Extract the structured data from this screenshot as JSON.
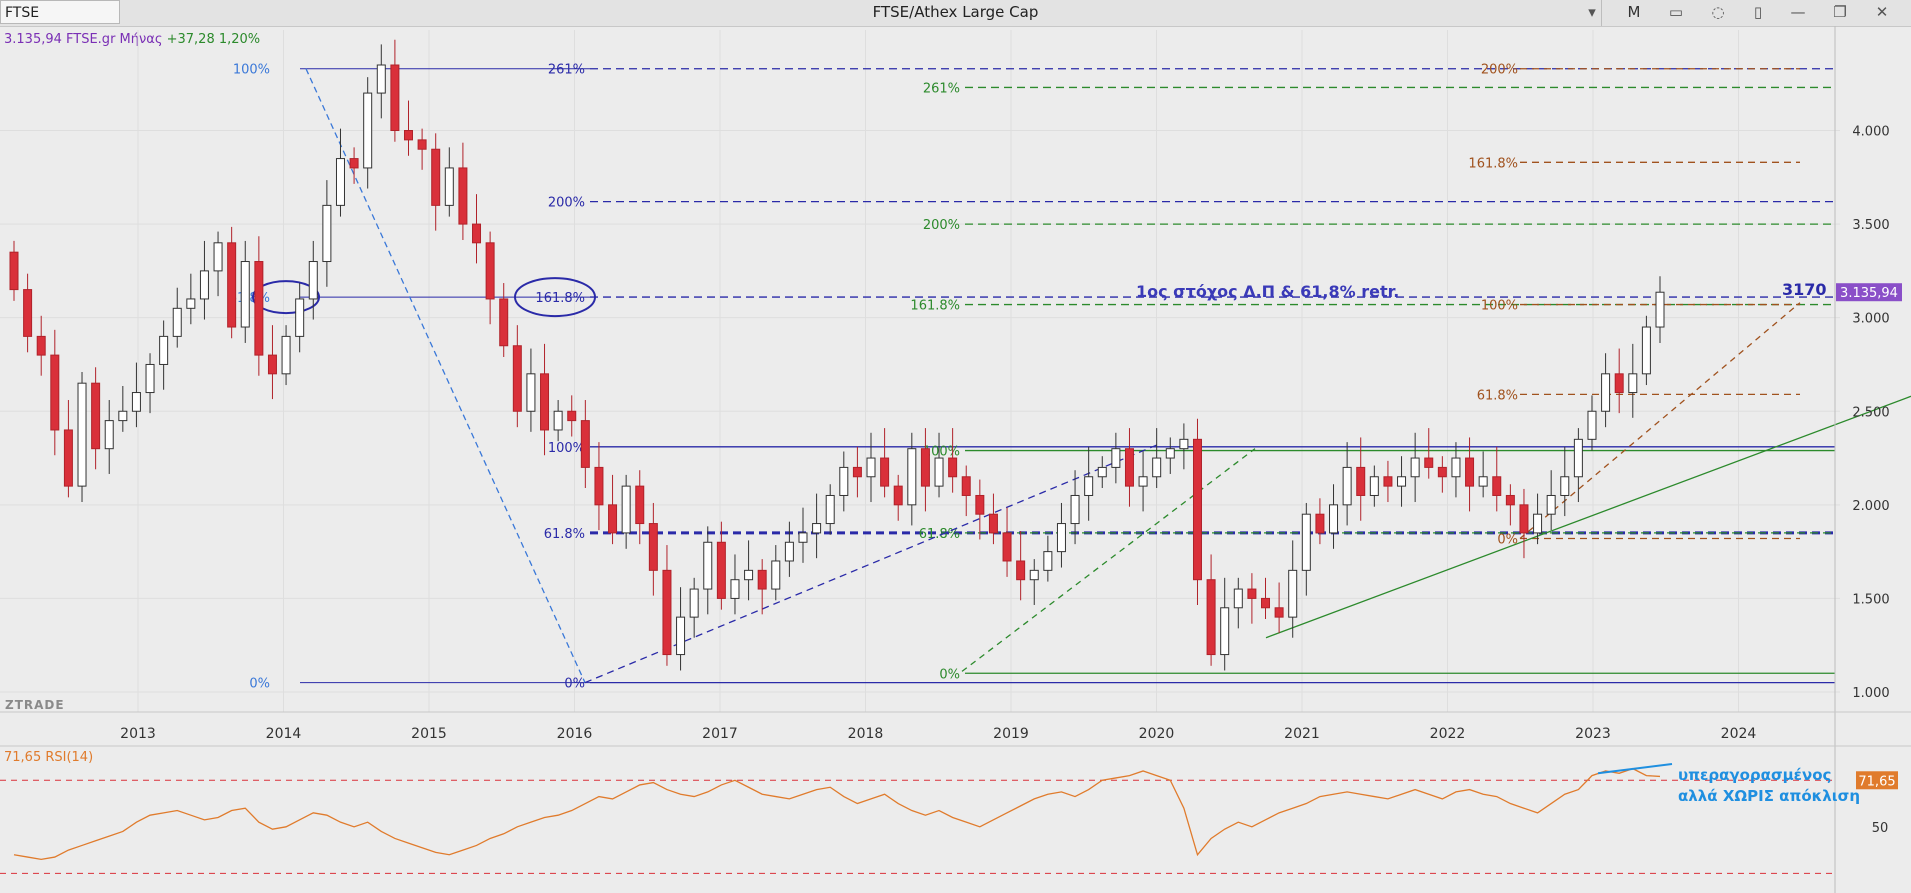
{
  "window": {
    "symbol": "FTSE",
    "title": "FTSE/Athex Large Cap",
    "mode_label": "M"
  },
  "quote": {
    "price_text": "3.135,94 FTSE.gr Μήνας",
    "change_text": "+37,28 1,20%"
  },
  "brand": "ZTRADE",
  "annotations": {
    "target_note": "1ος στόχος Δ.Π & 61,8% retr.",
    "target_value": "3170",
    "rsi_note_line1": "υπεραγορασμένος",
    "rsi_note_line2": "αλλά ΧΩΡΙΣ απόκλιση"
  },
  "rsi_panel": {
    "label": "71,65 RSI(14)",
    "current_badge": "71,65",
    "tick_50": "50"
  },
  "colors": {
    "up_candle": "#ffffff",
    "down_candle": "#d9303a",
    "fib_blue": "#2a2aa8",
    "fib_green": "#2c8a2c",
    "fib_brown": "#a0521e",
    "rsi_line": "#e07b2c",
    "price_badge": "#8a4fc8"
  },
  "chart_data": [
    {
      "type": "candlestick",
      "title": "FTSE/Athex Large Cap",
      "timeframe": "Μήνας",
      "x_ticks": [
        "2013",
        "2014",
        "2015",
        "2016",
        "2017",
        "2018",
        "2019",
        "2020",
        "2021",
        "2022",
        "2023",
        "2024"
      ],
      "y_ticks": [
        "1.000",
        "1.500",
        "2.000",
        "2.500",
        "3.000",
        "3.500",
        "4.000"
      ],
      "y_range": [
        1000,
        4350
      ],
      "last_price_label": "3.135,94",
      "series": [
        {
          "name": "FTSE",
          "close": [
            3150,
            2900,
            2800,
            2400,
            2100,
            2650,
            2300,
            2450,
            2500,
            2600,
            2750,
            2900,
            3050,
            3100,
            3250,
            3400,
            2950,
            3300,
            2800,
            2700,
            2900,
            3100,
            3300,
            3600,
            3850,
            3800,
            4200,
            4350,
            4000,
            3950,
            3900,
            3600,
            3800,
            3500,
            3400,
            3100,
            2850,
            2500,
            2700,
            2400,
            2500,
            2450,
            2200,
            2000,
            1850,
            2100,
            1900,
            1650,
            1200,
            1400,
            1550,
            1800,
            1500,
            1600,
            1650,
            1550,
            1700,
            1800,
            1850,
            1900,
            2050,
            2200,
            2150,
            2250,
            2100,
            2000,
            2300,
            2100,
            2250,
            2150,
            2050,
            1950,
            1850,
            1700,
            1600,
            1650,
            1750,
            1900,
            2050,
            2150,
            2200,
            2300,
            2100,
            2150,
            2250,
            2300,
            2350,
            1600,
            1200,
            1450,
            1550,
            1500,
            1450,
            1400,
            1650,
            1950,
            1850,
            2000,
            2200,
            2050,
            2150,
            2100,
            2150,
            2250,
            2200,
            2150,
            2250,
            2100,
            2150,
            2050,
            2000,
            1850,
            1950,
            2050,
            2150,
            2350,
            2500,
            2700,
            2600,
            2700,
            2950,
            3136
          ],
          "candle_count_note": "monthly candles 2012–2023"
        }
      ],
      "fibonacci": [
        {
          "name": "blue_retracement",
          "levels": [
            {
              "label": "100%",
              "value": 4330
            },
            {
              "label": "61.8%",
              "value": 3110
            },
            {
              "label": "0%",
              "value": 1050
            }
          ]
        },
        {
          "name": "blue_extension",
          "levels": [
            {
              "label": "261%",
              "value": 4330
            },
            {
              "label": "200%",
              "value": 3620
            },
            {
              "label": "161.8%",
              "value": 3110
            },
            {
              "label": "100%",
              "value": 2310
            },
            {
              "label": "61.8%",
              "value": 1850
            },
            {
              "label": "0%",
              "value": 1050
            }
          ]
        },
        {
          "name": "green_extension",
          "levels": [
            {
              "label": "261%",
              "value": 4230
            },
            {
              "label": "200%",
              "value": 3500
            },
            {
              "label": "161.8%",
              "value": 3070
            },
            {
              "label": "100%",
              "value": 2290
            },
            {
              "label": "61.8%",
              "value": 1850
            },
            {
              "label": "0%",
              "value": 1100
            }
          ]
        },
        {
          "name": "brown_extension",
          "levels": [
            {
              "label": "200%",
              "value": 4330
            },
            {
              "label": "161.8%",
              "value": 3830
            },
            {
              "label": "100%",
              "value": 3070
            },
            {
              "label": "61.8%",
              "value": 2590
            },
            {
              "label": "0%",
              "value": 1820
            }
          ]
        }
      ]
    },
    {
      "type": "line",
      "title": "RSI(14)",
      "y_ticks": [
        "50"
      ],
      "last_value": 71.65,
      "series": [
        {
          "name": "RSI(14)",
          "values": [
            38,
            37,
            36,
            37,
            40,
            42,
            44,
            46,
            48,
            52,
            55,
            56,
            57,
            55,
            53,
            54,
            57,
            58,
            52,
            49,
            50,
            53,
            56,
            55,
            52,
            50,
            52,
            48,
            45,
            43,
            41,
            39,
            38,
            40,
            42,
            45,
            47,
            50,
            52,
            54,
            55,
            57,
            60,
            63,
            62,
            65,
            68,
            69,
            66,
            64,
            63,
            65,
            68,
            70,
            67,
            64,
            63,
            62,
            64,
            66,
            67,
            63,
            60,
            62,
            64,
            60,
            57,
            55,
            57,
            54,
            52,
            50,
            53,
            56,
            59,
            62,
            64,
            65,
            63,
            66,
            70,
            71,
            72,
            74,
            72,
            70,
            58,
            38,
            45,
            49,
            52,
            50,
            53,
            56,
            58,
            60,
            63,
            64,
            65,
            64,
            63,
            62,
            64,
            66,
            64,
            62,
            65,
            66,
            64,
            63,
            60,
            58,
            56,
            60,
            64,
            66,
            72,
            74,
            73,
            75,
            72,
            71.65
          ]
        }
      ]
    }
  ]
}
